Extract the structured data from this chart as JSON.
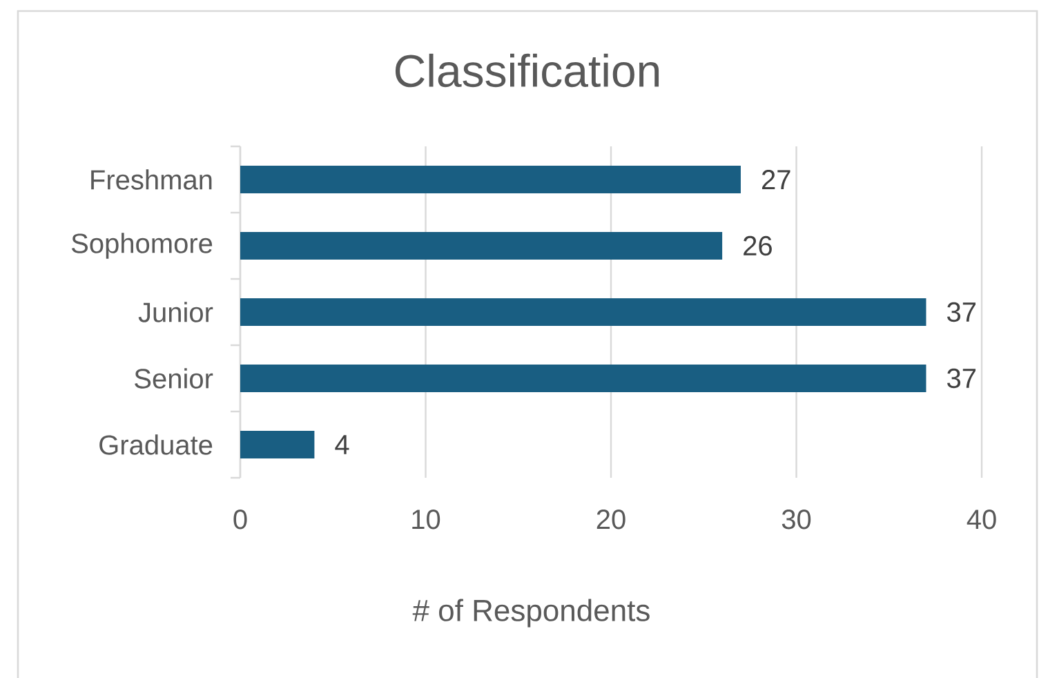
{
  "chart_data": {
    "type": "bar",
    "orientation": "horizontal",
    "title": "Classification",
    "xlabel": "# of Respondents",
    "categories": [
      "Freshman",
      "Sophomore",
      "Junior",
      "Senior",
      "Graduate"
    ],
    "values": [
      27,
      26,
      37,
      37,
      4
    ],
    "color": "#195e82",
    "xlim": [
      0,
      40
    ],
    "xticks": [
      0,
      10,
      20,
      30,
      40
    ],
    "grid": "x",
    "data_labels": true
  }
}
